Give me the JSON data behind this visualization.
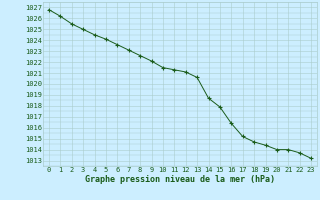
{
  "x": [
    0,
    1,
    2,
    3,
    4,
    5,
    6,
    7,
    8,
    9,
    10,
    11,
    12,
    13,
    14,
    15,
    16,
    17,
    18,
    19,
    20,
    21,
    22,
    23
  ],
  "y": [
    1026.8,
    1026.2,
    1025.5,
    1025.0,
    1024.5,
    1024.1,
    1023.6,
    1023.1,
    1022.6,
    1022.1,
    1021.5,
    1021.3,
    1021.1,
    1020.6,
    1018.7,
    1017.9,
    1016.4,
    1015.2,
    1014.7,
    1014.4,
    1014.0,
    1014.0,
    1013.7,
    1013.2
  ],
  "bg_color": "#cceeff",
  "grid_major_color": "#aacccc",
  "grid_minor_color": "#bbdddd",
  "line_color": "#1a5c1a",
  "marker_color": "#1a5c1a",
  "xlabel": "Graphe pression niveau de la mer (hPa)",
  "ylim": [
    1012.5,
    1027.5
  ],
  "xlim": [
    -0.5,
    23.5
  ],
  "tick_color": "#1a5c1a",
  "ytick_min": 1013,
  "ytick_max": 1027,
  "fontsize_ticks": 5.0,
  "fontsize_xlabel": 6.0
}
